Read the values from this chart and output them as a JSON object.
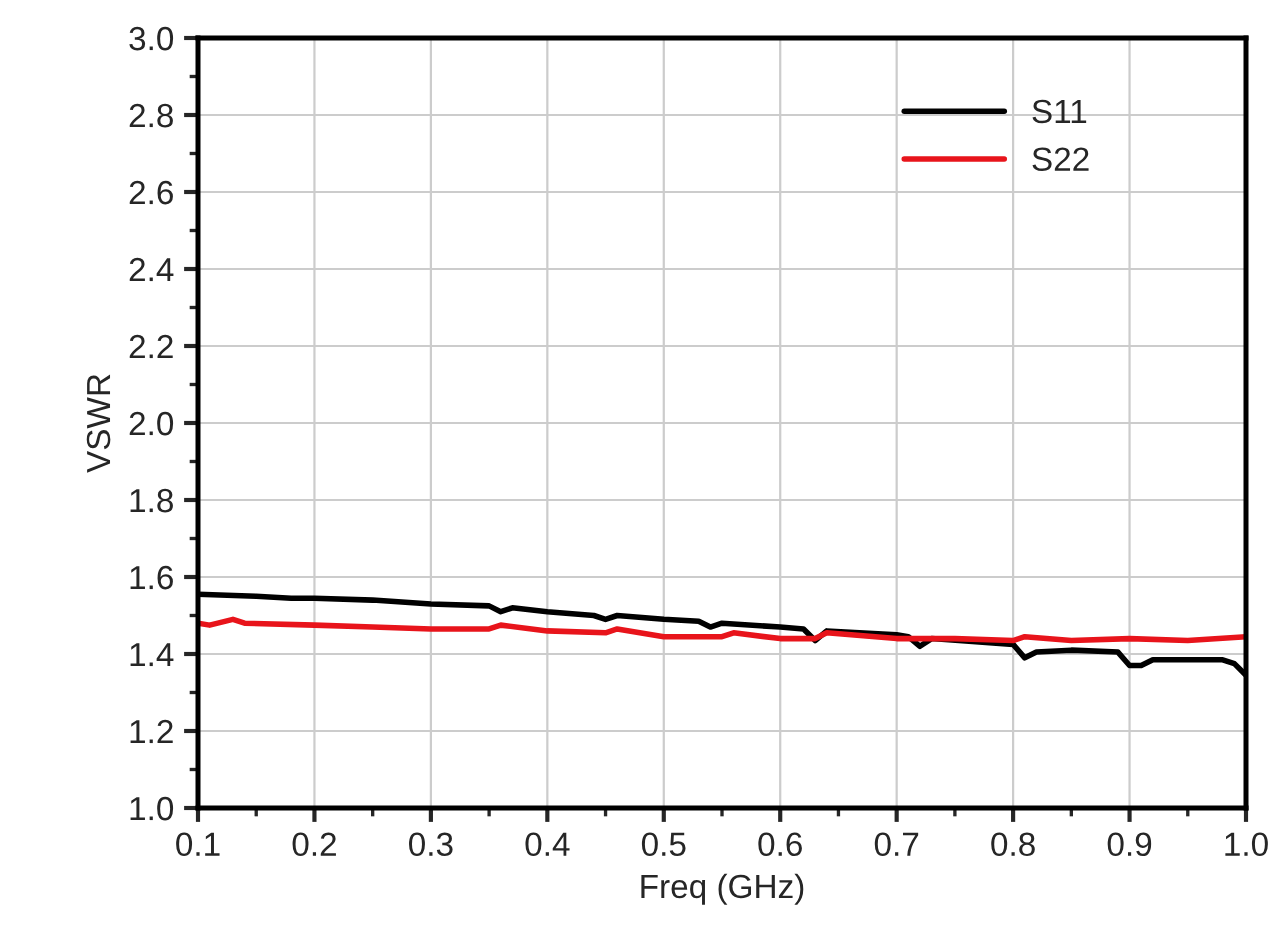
{
  "chart_data": {
    "type": "line",
    "xlabel": "Freq (GHz)",
    "ylabel": "VSWR",
    "xlim": [
      0.1,
      1.0
    ],
    "xticks": [
      {
        "value": 0.1,
        "label": "0.1"
      },
      {
        "value": 0.2,
        "label": "0.2"
      },
      {
        "value": 0.3,
        "label": "0.3"
      },
      {
        "value": 0.4,
        "label": "0.4"
      },
      {
        "value": 0.5,
        "label": "0.5"
      },
      {
        "value": 0.6,
        "label": "0.6"
      },
      {
        "value": 0.7,
        "label": "0.7"
      },
      {
        "value": 0.8,
        "label": "0.8"
      },
      {
        "value": 0.9,
        "label": "0.9"
      },
      {
        "value": 1.0,
        "label": "1.0"
      }
    ],
    "ylim": [
      1.0,
      3.0
    ],
    "yticks": [
      {
        "value": 1.0,
        "label": "1.0"
      },
      {
        "value": 1.2,
        "label": "1.2"
      },
      {
        "value": 1.4,
        "label": "1.4"
      },
      {
        "value": 1.6,
        "label": "1.6"
      },
      {
        "value": 1.8,
        "label": "1.8"
      },
      {
        "value": 2.0,
        "label": "2.0"
      },
      {
        "value": 2.2,
        "label": "2.2"
      },
      {
        "value": 2.4,
        "label": "2.4"
      },
      {
        "value": 2.6,
        "label": "2.6"
      },
      {
        "value": 2.8,
        "label": "2.8"
      },
      {
        "value": 3.0,
        "label": "3.0"
      }
    ],
    "grid": true,
    "legend": "top right",
    "marker": "none",
    "line_style": "solid",
    "series": [
      {
        "name": "S11",
        "color": "#000000",
        "x": [
          0.1,
          0.15,
          0.18,
          0.2,
          0.25,
          0.3,
          0.35,
          0.36,
          0.37,
          0.4,
          0.44,
          0.45,
          0.46,
          0.5,
          0.53,
          0.54,
          0.55,
          0.6,
          0.62,
          0.63,
          0.64,
          0.7,
          0.71,
          0.72,
          0.73,
          0.8,
          0.81,
          0.82,
          0.85,
          0.89,
          0.9,
          0.91,
          0.92,
          0.98,
          0.99,
          1.0
        ],
        "values": [
          1.555,
          1.55,
          1.545,
          1.545,
          1.54,
          1.53,
          1.525,
          1.51,
          1.52,
          1.51,
          1.5,
          1.49,
          1.5,
          1.49,
          1.485,
          1.47,
          1.48,
          1.47,
          1.465,
          1.435,
          1.46,
          1.45,
          1.445,
          1.42,
          1.44,
          1.425,
          1.39,
          1.405,
          1.41,
          1.405,
          1.37,
          1.37,
          1.385,
          1.385,
          1.375,
          1.345
        ]
      },
      {
        "name": "S22",
        "color": "#e8141b",
        "x": [
          0.1,
          0.11,
          0.13,
          0.14,
          0.2,
          0.25,
          0.3,
          0.35,
          0.36,
          0.4,
          0.45,
          0.46,
          0.5,
          0.55,
          0.56,
          0.6,
          0.63,
          0.64,
          0.7,
          0.75,
          0.8,
          0.81,
          0.85,
          0.9,
          0.95,
          1.0
        ],
        "values": [
          1.48,
          1.475,
          1.49,
          1.48,
          1.475,
          1.47,
          1.465,
          1.465,
          1.475,
          1.46,
          1.455,
          1.465,
          1.445,
          1.445,
          1.455,
          1.44,
          1.44,
          1.455,
          1.44,
          1.44,
          1.435,
          1.445,
          1.435,
          1.44,
          1.435,
          1.445
        ]
      }
    ]
  }
}
